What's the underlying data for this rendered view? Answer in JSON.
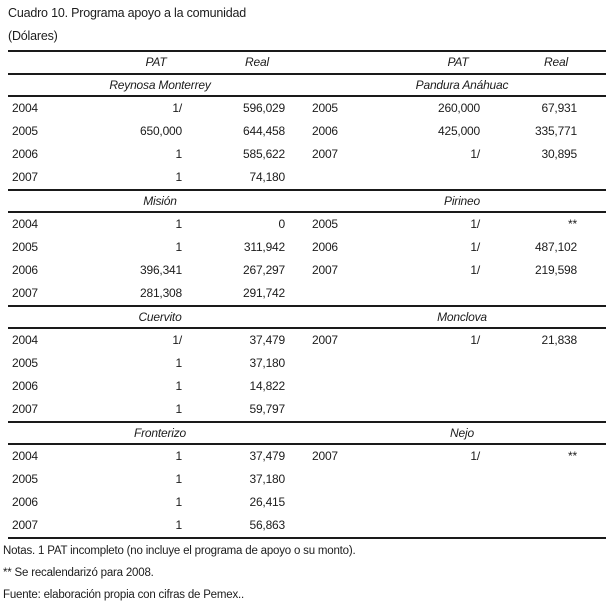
{
  "page": {
    "title": "Cuadro 10. Programa apoyo a la comunidad",
    "subtitle": "(Dólares)"
  },
  "table": {
    "column_headers": {
      "pat": "PAT",
      "real": "Real"
    },
    "sections": [
      {
        "left": {
          "name": "Reynosa Monterrey",
          "rows": [
            [
              "2004",
              "1/",
              "596,029"
            ],
            [
              "2005",
              "650,000",
              "644,458"
            ],
            [
              "2006",
              "1",
              "585,622"
            ],
            [
              "2007",
              "1",
              "74,180"
            ]
          ]
        },
        "right": {
          "name": "Pandura Anáhuac",
          "rows": [
            [
              "2005",
              "260,000",
              "67,931"
            ],
            [
              "2006",
              "425,000",
              "335,771"
            ],
            [
              "2007",
              "1/",
              "30,895"
            ]
          ]
        }
      },
      {
        "left": {
          "name": "Misión",
          "rows": [
            [
              "2004",
              "1",
              "0"
            ],
            [
              "2005",
              "1",
              "311,942"
            ],
            [
              "2006",
              "396,341",
              "267,297"
            ],
            [
              "2007",
              "281,308",
              "291,742"
            ]
          ]
        },
        "right": {
          "name": "Pirineo",
          "rows": [
            [
              "2005",
              "1/",
              "**"
            ],
            [
              "2006",
              "1/",
              "487,102"
            ],
            [
              "2007",
              "1/",
              "219,598"
            ]
          ]
        }
      },
      {
        "left": {
          "name": "Cuervito",
          "rows": [
            [
              "2004",
              "1/",
              "37,479"
            ],
            [
              "2005",
              "1",
              "37,180"
            ],
            [
              "2006",
              "1",
              "14,822"
            ],
            [
              "2007",
              "1",
              "59,797"
            ]
          ]
        },
        "right": {
          "name": "Monclova",
          "rows": [
            [
              "2007",
              "1/",
              "21,838"
            ]
          ]
        }
      },
      {
        "left": {
          "name": "Fronterizo",
          "rows": [
            [
              "2004",
              "1",
              "37,479"
            ],
            [
              "2005",
              "1",
              "37,180"
            ],
            [
              "2006",
              "1",
              "26,415"
            ],
            [
              "2007",
              "1",
              "56,863"
            ]
          ]
        },
        "right": {
          "name": "Nejo",
          "rows": [
            [
              "2007",
              "1/",
              "**"
            ]
          ]
        }
      }
    ]
  },
  "notes": [
    "Notas. 1 PAT incompleto (no incluye el programa de apoyo o su monto).",
    "** Se recalendarizó para 2008.",
    "Fuente: elaboración propia con cifras de Pemex.."
  ],
  "colors": {
    "background": "#ffffff",
    "text": "#1c1c1c",
    "rule": "#1a1a1a"
  }
}
